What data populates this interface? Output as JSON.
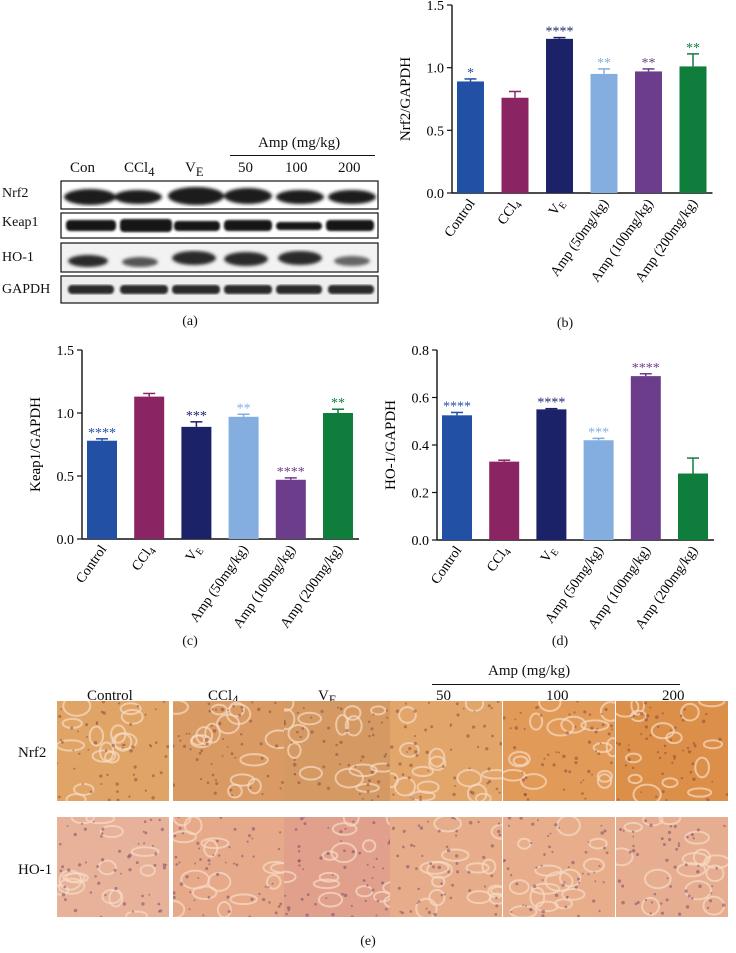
{
  "panel_labels": {
    "a": "(a)",
    "b": "(b)",
    "c": "(c)",
    "d": "(d)",
    "e": "(e)"
  },
  "blot": {
    "header_group": "Amp (mg/kg)",
    "lanes": [
      "Con",
      "CCl4",
      "VE",
      "50",
      "100",
      "200"
    ],
    "rows": [
      "Nrf2",
      "Keap1",
      "HO-1",
      "GAPDH"
    ]
  },
  "colors": [
    "#2150a4",
    "#8b2462",
    "#1c2268",
    "#85aee0",
    "#6c3d8a",
    "#0f7d3c"
  ],
  "chart_data": [
    {
      "id": "b",
      "type": "bar",
      "categories": [
        "Control",
        "CCl4",
        "VE",
        "Amp (50mg/kg)",
        "Amp (100mg/kg)",
        "Amp (200mg/kg)"
      ],
      "values": [
        0.89,
        0.76,
        1.23,
        0.95,
        0.97,
        1.01
      ],
      "errors": [
        0.02,
        0.05,
        0.01,
        0.04,
        0.02,
        0.1
      ],
      "significance": [
        "*",
        "",
        "****",
        "**",
        "**",
        "**"
      ],
      "ylabel": "Nrf2/GAPDH",
      "ylim": [
        0,
        1.5
      ],
      "yticks": [
        "0.0",
        "0.5",
        "1.0",
        "1.5"
      ]
    },
    {
      "id": "c",
      "type": "bar",
      "categories": [
        "Control",
        "CCl4",
        "VE",
        "Amp (50mg/kg)",
        "Amp (100mg/kg)",
        "Amp (200mg/kg)"
      ],
      "values": [
        0.78,
        1.13,
        0.89,
        0.97,
        0.47,
        1.0
      ],
      "errors": [
        0.015,
        0.025,
        0.04,
        0.02,
        0.015,
        0.03
      ],
      "significance": [
        "****",
        "",
        "***",
        "**",
        "****",
        "**"
      ],
      "ylabel": "Keap1/GAPDH",
      "ylim": [
        0,
        1.5
      ],
      "yticks": [
        "0.0",
        "0.5",
        "1.0",
        "1.5"
      ]
    },
    {
      "id": "d",
      "type": "bar",
      "categories": [
        "Control",
        "CCl4",
        "VE",
        "Amp (50mg/kg)",
        "Amp (100mg/kg)",
        "Amp (200mg/kg)"
      ],
      "values": [
        0.525,
        0.33,
        0.55,
        0.42,
        0.69,
        0.28
      ],
      "errors": [
        0.012,
        0.006,
        0.003,
        0.008,
        0.01,
        0.065
      ],
      "significance": [
        "****",
        "",
        "****",
        "***",
        "****",
        ""
      ],
      "ylabel": "HO-1/GAPDH",
      "ylim": [
        0,
        0.8
      ],
      "yticks": [
        "0.0",
        "0.2",
        "0.4",
        "0.6",
        "0.8"
      ]
    }
  ],
  "histology": {
    "header_group": "Amp (mg/kg)",
    "columns": [
      "Control",
      "CCl4",
      "VE",
      "50",
      "100",
      "200"
    ],
    "rows": [
      "Nrf2",
      "HO-1"
    ]
  }
}
